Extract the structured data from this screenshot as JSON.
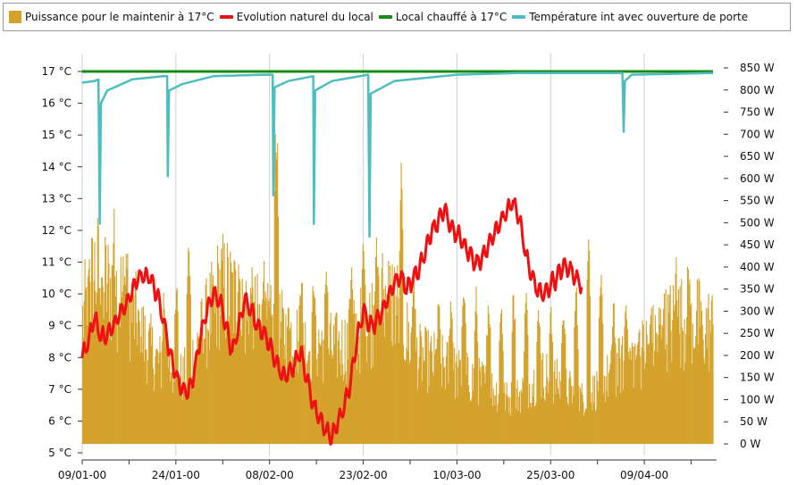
{
  "chart_data": {
    "type": "line",
    "title": "",
    "xlabel": "",
    "ylabel": "",
    "x_ticks": [
      "09/01-00",
      "24/01-00",
      "08/02-00",
      "23/02-00",
      "10/03-00",
      "25/03-00",
      "09/04-00"
    ],
    "y_left": {
      "ticks": [
        "5 °C",
        "6 °C",
        "7 °C",
        "8 °C",
        "9 °C",
        "10 °C",
        "11 °C",
        "12 °C",
        "13 °C",
        "14 °C",
        "15 °C",
        "16 °C",
        "17 °C"
      ],
      "range": [
        5,
        17
      ]
    },
    "y_right": {
      "ticks": [
        "0 W",
        "50 W",
        "100 W",
        "150 W",
        "200 W",
        "250 W",
        "300 W",
        "350 W",
        "400 W",
        "450 W",
        "500 W",
        "550 W",
        "600 W",
        "650 W",
        "700 W",
        "750 W",
        "800 W",
        "850 W"
      ],
      "range": [
        0,
        850
      ]
    },
    "x_range_days": [
      0,
      101
    ],
    "grid": "vertical",
    "legend_position": "top",
    "colors": {
      "power": "#d4a22a",
      "natural": "#ee1111",
      "heated": "#178a17",
      "door": "#4dbdbd"
    },
    "series": [
      {
        "name": "Puissance pour le maintenir à 17°C",
        "kind": "bar",
        "axis": "right",
        "color": "#d4a22a",
        "envelope": [
          [
            0,
            300
          ],
          [
            2,
            420
          ],
          [
            4,
            380
          ],
          [
            6,
            370
          ],
          [
            8,
            320
          ],
          [
            10,
            250
          ],
          [
            12,
            200
          ],
          [
            14,
            180
          ],
          [
            16,
            160
          ],
          [
            18,
            220
          ],
          [
            20,
            300
          ],
          [
            22,
            380
          ],
          [
            24,
            360
          ],
          [
            26,
            320
          ],
          [
            28,
            300
          ],
          [
            30,
            280
          ],
          [
            32,
            270
          ],
          [
            34,
            260
          ],
          [
            36,
            240
          ],
          [
            38,
            250
          ],
          [
            40,
            230
          ],
          [
            42,
            240
          ],
          [
            44,
            270
          ],
          [
            46,
            300
          ],
          [
            48,
            350
          ],
          [
            50,
            350
          ],
          [
            52,
            260
          ],
          [
            54,
            210
          ],
          [
            56,
            200
          ],
          [
            58,
            190
          ],
          [
            60,
            170
          ],
          [
            62,
            160
          ],
          [
            64,
            150
          ],
          [
            66,
            130
          ],
          [
            68,
            110
          ],
          [
            70,
            120
          ],
          [
            72,
            150
          ],
          [
            74,
            170
          ],
          [
            76,
            150
          ],
          [
            78,
            130
          ],
          [
            80,
            110
          ],
          [
            82,
            130
          ],
          [
            84,
            160
          ],
          [
            86,
            190
          ],
          [
            88,
            210
          ],
          [
            90,
            230
          ],
          [
            92,
            260
          ],
          [
            94,
            290
          ],
          [
            96,
            300
          ],
          [
            98,
            300
          ],
          [
            100,
            280
          ]
        ],
        "peaks": [
          [
            1,
            380
          ],
          [
            3,
            430
          ],
          [
            5,
            560
          ],
          [
            7,
            480
          ],
          [
            9,
            320
          ],
          [
            13,
            380
          ],
          [
            15,
            420
          ],
          [
            17,
            500
          ],
          [
            19,
            340
          ],
          [
            21,
            350
          ],
          [
            25,
            470
          ],
          [
            27,
            420
          ],
          [
            29,
            480
          ],
          [
            31,
            850
          ],
          [
            33,
            360
          ],
          [
            35,
            450
          ],
          [
            37,
            430
          ],
          [
            39,
            470
          ],
          [
            43,
            460
          ],
          [
            45,
            540
          ],
          [
            47,
            530
          ],
          [
            49,
            410
          ],
          [
            51,
            670
          ],
          [
            53,
            440
          ],
          [
            57,
            360
          ],
          [
            59,
            380
          ],
          [
            61,
            420
          ],
          [
            63,
            360
          ],
          [
            65,
            380
          ],
          [
            67,
            360
          ],
          [
            69,
            390
          ],
          [
            71,
            380
          ],
          [
            73,
            350
          ],
          [
            75,
            340
          ],
          [
            77,
            360
          ],
          [
            79,
            390
          ],
          [
            81,
            540
          ],
          [
            83,
            420
          ],
          [
            85,
            360
          ],
          [
            87,
            380
          ],
          [
            89,
            300
          ],
          [
            91,
            340
          ],
          [
            93,
            350
          ],
          [
            95,
            470
          ],
          [
            97,
            480
          ],
          [
            99,
            350
          ]
        ]
      },
      {
        "name": "Evolution naturel du local",
        "kind": "line",
        "axis": "left",
        "color": "#ee1111",
        "points": [
          [
            0,
            8.0
          ],
          [
            1,
            8.5
          ],
          [
            2,
            9.3
          ],
          [
            3,
            8.6
          ],
          [
            4,
            8.7
          ],
          [
            5,
            9.0
          ],
          [
            6,
            9.4
          ],
          [
            7,
            9.6
          ],
          [
            8,
            10.1
          ],
          [
            9,
            10.5
          ],
          [
            10,
            10.6
          ],
          [
            11,
            10.5
          ],
          [
            12,
            10.0
          ],
          [
            13,
            9.2
          ],
          [
            14,
            8.2
          ],
          [
            15,
            7.4
          ],
          [
            16,
            7.0
          ],
          [
            17,
            6.9
          ],
          [
            18,
            7.6
          ],
          [
            19,
            8.7
          ],
          [
            20,
            9.5
          ],
          [
            21,
            10.0
          ],
          [
            22,
            9.8
          ],
          [
            23,
            9.0
          ],
          [
            24,
            8.2
          ],
          [
            25,
            8.9
          ],
          [
            26,
            9.8
          ],
          [
            27,
            9.5
          ],
          [
            28,
            9.0
          ],
          [
            29,
            8.8
          ],
          [
            30,
            8.4
          ],
          [
            31,
            7.9
          ],
          [
            32,
            7.4
          ],
          [
            33,
            7.5
          ],
          [
            34,
            7.8
          ],
          [
            35,
            8.2
          ],
          [
            36,
            7.3
          ],
          [
            37,
            6.5
          ],
          [
            38,
            6.1
          ],
          [
            39,
            5.7
          ],
          [
            40,
            5.5
          ],
          [
            41,
            6.0
          ],
          [
            42,
            6.5
          ],
          [
            43,
            7.3
          ],
          [
            44,
            8.5
          ],
          [
            45,
            9.5
          ],
          [
            46,
            9.0
          ],
          [
            47,
            9.1
          ],
          [
            48,
            9.4
          ],
          [
            49,
            9.9
          ],
          [
            50,
            10.4
          ],
          [
            51,
            10.6
          ],
          [
            52,
            10.1
          ],
          [
            53,
            10.5
          ],
          [
            54,
            10.8
          ],
          [
            55,
            11.4
          ],
          [
            56,
            12.0
          ],
          [
            57,
            12.3
          ],
          [
            58,
            12.7
          ],
          [
            59,
            12.1
          ],
          [
            60,
            11.9
          ],
          [
            61,
            11.6
          ],
          [
            62,
            11.3
          ],
          [
            63,
            11.0
          ],
          [
            64,
            11.1
          ],
          [
            65,
            11.5
          ],
          [
            66,
            11.9
          ],
          [
            67,
            12.3
          ],
          [
            68,
            12.6
          ],
          [
            69,
            12.9
          ],
          [
            70,
            12.4
          ],
          [
            71,
            11.2
          ],
          [
            72,
            10.6
          ],
          [
            73,
            10.1
          ],
          [
            74,
            10.0
          ],
          [
            75,
            10.3
          ],
          [
            76,
            10.5
          ],
          [
            77,
            10.9
          ],
          [
            78,
            10.8
          ],
          [
            79,
            10.5
          ],
          [
            80,
            10.3
          ]
        ],
        "noise": 0.32
      },
      {
        "name": "Local chauffé à 17°C",
        "kind": "line",
        "axis": "left",
        "color": "#178a17",
        "points": [
          [
            0,
            17.0
          ],
          [
            101,
            17.0
          ]
        ]
      },
      {
        "name": "Température int avec ouverture de porte",
        "kind": "line",
        "axis": "left",
        "color": "#4dbdbd",
        "points": [
          [
            0,
            16.65
          ],
          [
            2,
            16.7
          ],
          [
            2.6,
            16.75
          ],
          [
            2.8,
            12.2
          ],
          [
            3.0,
            16.0
          ],
          [
            4,
            16.4
          ],
          [
            8,
            16.75
          ],
          [
            13,
            16.85
          ],
          [
            13.6,
            16.85
          ],
          [
            13.7,
            13.7
          ],
          [
            13.9,
            16.4
          ],
          [
            16,
            16.6
          ],
          [
            21,
            16.85
          ],
          [
            29,
            16.9
          ],
          [
            30.5,
            16.9
          ],
          [
            30.6,
            13.1
          ],
          [
            30.8,
            16.5
          ],
          [
            33,
            16.7
          ],
          [
            37,
            16.85
          ],
          [
            37.1,
            12.2
          ],
          [
            37.3,
            16.4
          ],
          [
            40,
            16.7
          ],
          [
            45.8,
            16.9
          ],
          [
            46,
            11.8
          ],
          [
            46.2,
            16.3
          ],
          [
            50,
            16.7
          ],
          [
            60,
            16.9
          ],
          [
            70,
            16.95
          ],
          [
            86.5,
            16.95
          ],
          [
            86.7,
            15.1
          ],
          [
            86.9,
            16.7
          ],
          [
            88,
            16.9
          ],
          [
            101,
            16.95
          ]
        ]
      }
    ]
  }
}
